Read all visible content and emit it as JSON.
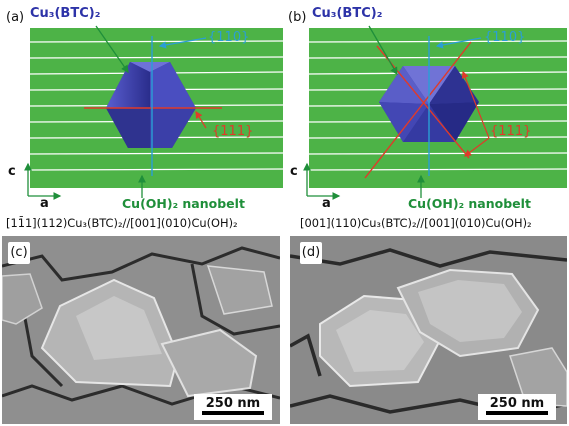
{
  "panels": {
    "a": {
      "label": "(a)",
      "crystal_label": "Cu₃(BTC)₂",
      "facet_110": "{110}",
      "facet_111": "{111}",
      "nanobelt": "Cu(OH)₂ nanobelt",
      "axis_c": "c",
      "axis_a": "a",
      "caption": "[11̄1](112)Cu₃(BTC)₂//[001](010)Cu(OH)₂"
    },
    "b": {
      "label": "(b)",
      "crystal_label": "Cu₃(BTC)₂",
      "facet_110": "{110}",
      "facet_111": "{111}",
      "nanobelt": "Cu(OH)₂ nanobelt",
      "axis_c": "c",
      "axis_a": "a",
      "caption": "[001](110)Cu₃(BTC)₂//[001](010)Cu(OH)₂"
    },
    "c": {
      "label": "(c)",
      "scale": "250 nm"
    },
    "d": {
      "label": "(d)",
      "scale": "250 nm"
    }
  },
  "colors": {
    "belt": "#4db347",
    "crystal": "#3a3fb0",
    "facet_110": "#2a9fd6",
    "facet_111": "#e03a2a",
    "arrow": "#1f8f3a"
  }
}
